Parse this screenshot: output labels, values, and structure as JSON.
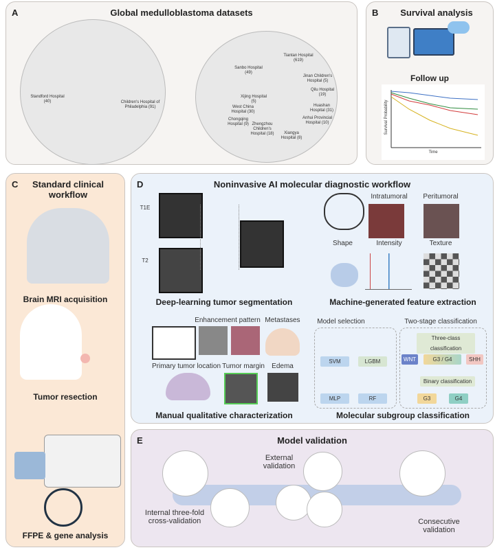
{
  "panelA": {
    "letter": "A",
    "title": "Global medulloblastoma datasets",
    "na_hospitals": [
      "Standford Hospital (40)",
      "Children's Hospital of Philadelphia (91)"
    ],
    "china_hospitals": [
      "Tiantan Hospital (619)",
      "Sanbo Hospital (49)",
      "Jinan Children's Hospital (5)",
      "Qilu Hospital (19)",
      "Xijing Hospital (5)",
      "West China Hospital (30)",
      "Huashan Hospital (31)",
      "Chongqing Hospital (9)",
      "Zhengzhou Children's Hospital (18)",
      "Anhui Provincial Hospital (10)",
      "Xiangya Hospital (8)"
    ]
  },
  "panelB": {
    "letter": "B",
    "title": "Survival analysis",
    "subtitle": "Follow up",
    "ylabel": "Survival Probability",
    "xlabel": "Time",
    "colors": [
      "#3b6fc4",
      "#2e8b3e",
      "#d23a3a",
      "#d6b21e"
    ]
  },
  "panelC": {
    "letter": "C",
    "title": "Standard clinical workflow",
    "steps": [
      "Brain MRI acquisition",
      "Tumor resection",
      "FFPE & gene analysis"
    ]
  },
  "panelD": {
    "letter": "D",
    "title": "Noninvasive AI molecular diagnostic workflow",
    "seg": {
      "inputs": [
        "T1E",
        "T2"
      ],
      "caption": "Deep-learning tumor segmentation"
    },
    "features": {
      "regions": [
        "Intratumoral",
        "Peritumoral"
      ],
      "types": [
        "Shape",
        "Intensity",
        "Texture"
      ],
      "caption": "Machine-generated feature extraction"
    },
    "manual": {
      "items": [
        "Enhancement pattern",
        "Metastases",
        "Primary tumor location",
        "Tumor margin",
        "Edema"
      ],
      "caption": "Manual qualitative characterization"
    },
    "classification": {
      "model_title": "Model selection",
      "models": [
        "SVM",
        "LGBM",
        "MLP",
        "RF"
      ],
      "stage_title": "Two-stage classification",
      "three_class": "Three-class classification",
      "classes": [
        "WNT",
        "G3 / G4",
        "SHH"
      ],
      "binary": "Binary classification",
      "binary_classes": [
        "G3",
        "G4"
      ],
      "caption": "Molecular subgroup classification"
    }
  },
  "panelE": {
    "letter": "E",
    "title": "Model validation",
    "steps": [
      "Internal three-fold cross-validation",
      "External validation",
      "Consecutive validation"
    ]
  }
}
